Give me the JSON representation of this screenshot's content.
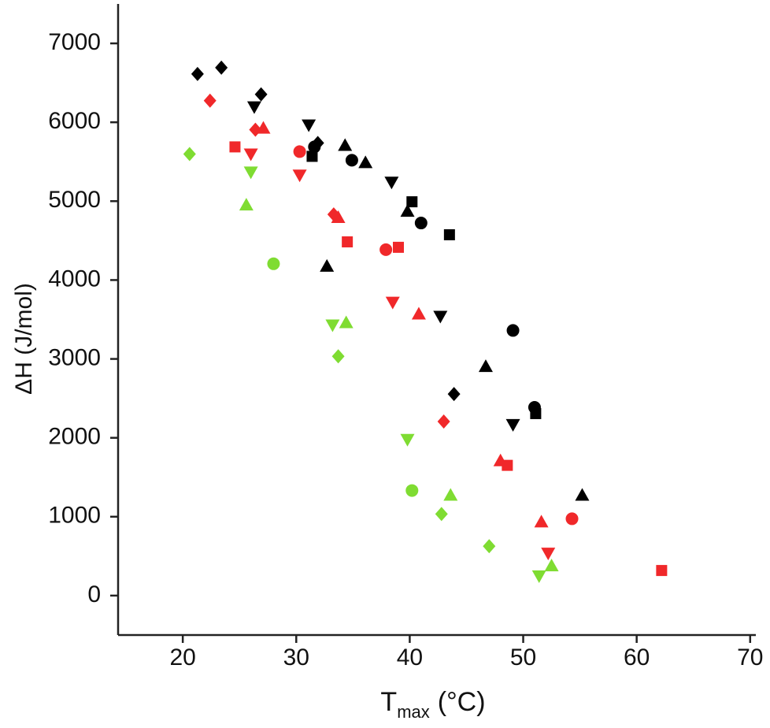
{
  "chart_data": {
    "type": "scatter",
    "y_label": "ΔH (J/mol)",
    "x_label": {
      "main": "T",
      "sub": "max",
      "unit": "(°C)"
    },
    "xlim": [
      14.3,
      70.5
    ],
    "xticks": [
      20,
      30,
      40,
      50,
      60,
      70
    ],
    "ylim": [
      -500,
      7500
    ],
    "yticks": [
      0,
      1000,
      2000,
      3000,
      4000,
      5000,
      6000,
      7000
    ],
    "grid": false,
    "series": [
      {
        "color": "#000000",
        "marker": "diamond",
        "x": [
          21.3,
          23.4,
          26.9,
          31.9,
          43.9
        ],
        "values": [
          6612,
          6692,
          6354,
          5737,
          2555
        ]
      },
      {
        "color": "#000000",
        "marker": "triangle-down",
        "x": [
          26.3,
          31.1,
          38.4,
          42.7,
          49.1
        ],
        "values": [
          6195,
          5966,
          5240,
          3540,
          2168
        ]
      },
      {
        "color": "#000000",
        "marker": "square",
        "x": [
          31.4,
          40.2,
          43.5,
          51.1
        ],
        "values": [
          5568,
          4992,
          4574,
          2307
        ]
      },
      {
        "color": "#000000",
        "marker": "circle",
        "x": [
          31.6,
          34.9,
          41.0,
          49.1,
          51.0
        ],
        "values": [
          5688,
          5519,
          4723,
          3361,
          2386
        ]
      },
      {
        "color": "#000000",
        "marker": "triangle-up",
        "x": [
          34.3,
          36.1,
          39.8,
          32.7,
          46.7,
          55.2
        ],
        "values": [
          5707,
          5489,
          4872,
          4176,
          2904,
          1273
        ]
      },
      {
        "color": "#f0282a",
        "marker": "diamond",
        "x": [
          22.4,
          26.4,
          33.3,
          43.0
        ],
        "values": [
          6274,
          5906,
          4832,
          2207
        ]
      },
      {
        "color": "#f0282a",
        "marker": "triangle-up",
        "x": [
          27.1,
          33.7,
          40.8,
          48.0,
          51.6
        ],
        "values": [
          5926,
          4793,
          3570,
          1710,
          935
        ]
      },
      {
        "color": "#f0282a",
        "marker": "triangle-down",
        "x": [
          26.0,
          30.3,
          38.5,
          52.2
        ],
        "values": [
          5598,
          5330,
          3719,
          537
        ]
      },
      {
        "color": "#f0282a",
        "marker": "square",
        "x": [
          24.6,
          34.5,
          39.0,
          48.6,
          62.2
        ],
        "values": [
          5688,
          4484,
          4415,
          1651,
          318
        ]
      },
      {
        "color": "#f0282a",
        "marker": "circle",
        "x": [
          30.3,
          37.9,
          54.3
        ],
        "values": [
          5628,
          4385,
          974
        ]
      },
      {
        "color": "#7fdc32",
        "marker": "diamond",
        "x": [
          20.6,
          33.7,
          42.8,
          47.0
        ],
        "values": [
          5598,
          3033,
          1034,
          626
        ]
      },
      {
        "color": "#7fdc32",
        "marker": "triangle-down",
        "x": [
          26.0,
          33.2,
          39.8,
          51.4
        ],
        "values": [
          5369,
          3430,
          1979,
          249
        ]
      },
      {
        "color": "#7fdc32",
        "marker": "triangle-up",
        "x": [
          25.6,
          34.4,
          43.6,
          52.5
        ],
        "values": [
          4952,
          3460,
          1273,
          378
        ]
      },
      {
        "color": "#7fdc32",
        "marker": "circle",
        "x": [
          28.0,
          40.2
        ],
        "values": [
          4206,
          1332
        ]
      }
    ]
  }
}
